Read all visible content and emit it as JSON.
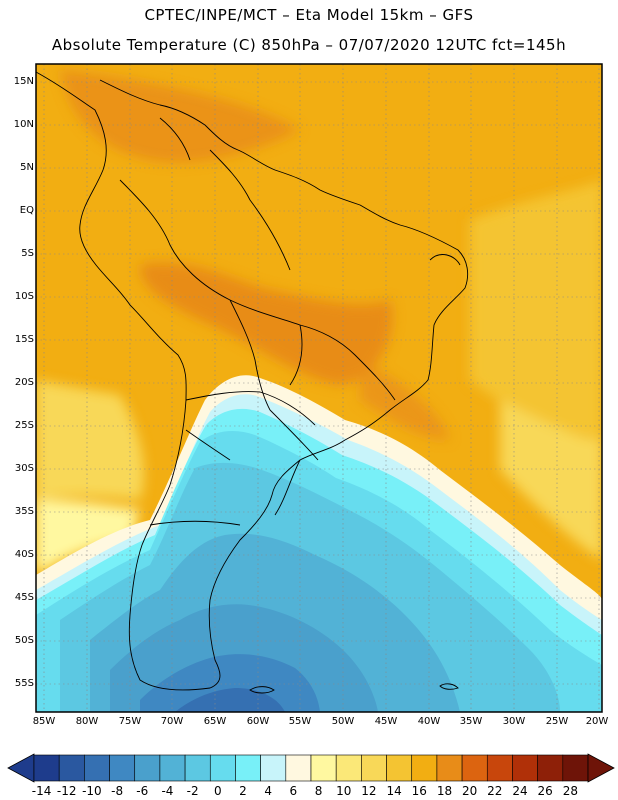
{
  "title": {
    "line1": "CPTEC/INPE/MCT –  Eta Model 15km – GFS",
    "line2": "Absolute Temperature (C) 850hPa – 07/07/2020 12UTC fct=145h"
  },
  "map": {
    "region": "South America",
    "lat_labels": [
      "15N",
      "10N",
      "5N",
      "EQ",
      "5S",
      "10S",
      "15S",
      "20S",
      "25S",
      "30S",
      "35S",
      "40S",
      "45S",
      "50S",
      "55S"
    ],
    "lon_labels": [
      "85W",
      "80W",
      "75W",
      "70W",
      "65W",
      "60W",
      "55W",
      "50W",
      "45W",
      "40W",
      "35W",
      "30W",
      "25W",
      "20W"
    ],
    "gridlines": "dotted"
  },
  "colorbar": {
    "labels": [
      "-14",
      "-12",
      "-10",
      "-8",
      "-6",
      "-4",
      "-2",
      "0",
      "2",
      "4",
      "6",
      "8",
      "10",
      "12",
      "14",
      "16",
      "18",
      "20",
      "22",
      "24",
      "26",
      "28"
    ],
    "colors": [
      "#1e3c8c",
      "#2a58a0",
      "#3570b2",
      "#3f88c2",
      "#4aa0cc",
      "#52b2d6",
      "#5cc8e2",
      "#66dcee",
      "#78f0f8",
      "#c8f4fa",
      "#fff8e0",
      "#fff8a0",
      "#fbe878",
      "#f8d858",
      "#f4c432",
      "#f2ae12",
      "#e88c18",
      "#dc6410",
      "#c8460c",
      "#b03008",
      "#8e2008",
      "#6e1408"
    ]
  }
}
